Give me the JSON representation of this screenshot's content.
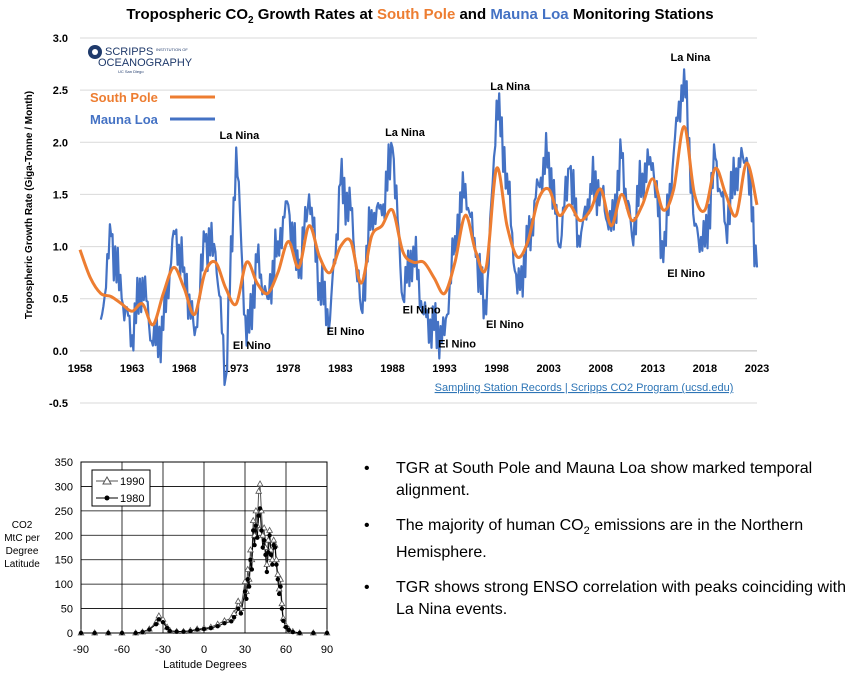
{
  "chart_data": [
    {
      "type": "line",
      "title": "Tropospheric CO2 Growth Rates at South Pole and Mauna Loa Monitoring Stations",
      "title_parts": {
        "prefix": "Tropospheric CO",
        "sub": "2",
        "mid": " Growth Rates at ",
        "south_pole": "South Pole",
        "and": " and ",
        "mauna_loa": "Mauna Loa",
        "suffix": " Monitoring Stations"
      },
      "ylabel": "Tropospheric Growth Rate (Giga-Tonne / Month)",
      "xlabel": "",
      "xlim": [
        1958,
        2023
      ],
      "ylim": [
        -0.5,
        3.0
      ],
      "x_ticks": [
        1958,
        1963,
        1968,
        1973,
        1978,
        1983,
        1988,
        1993,
        1998,
        2003,
        2008,
        2013,
        2018,
        2023
      ],
      "y_ticks": [
        "-0.5",
        "0.0",
        "0.5",
        "1.0",
        "1.5",
        "2.0",
        "2.5",
        "3.0"
      ],
      "legend": "top-left",
      "series": [
        {
          "name": "South Pole",
          "color": "#ED7D31",
          "x": [
            1958,
            1959,
            1960,
            1961,
            1962,
            1963,
            1964,
            1965,
            1966,
            1967,
            1968,
            1969,
            1970,
            1971,
            1972,
            1973,
            1974,
            1975,
            1976,
            1977,
            1978,
            1979,
            1980,
            1981,
            1982,
            1983,
            1984,
            1985,
            1986,
            1987,
            1988,
            1989,
            1990,
            1991,
            1992,
            1993,
            1994,
            1995,
            1996,
            1997,
            1998,
            1999,
            2000,
            2001,
            2002,
            2003,
            2004,
            2005,
            2006,
            2007,
            2008,
            2009,
            2010,
            2011,
            2012,
            2013,
            2014,
            2015,
            2016,
            2017,
            2018,
            2019,
            2020,
            2021,
            2022,
            2023
          ],
          "values": [
            0.97,
            0.7,
            0.55,
            0.52,
            0.45,
            0.38,
            0.45,
            0.25,
            0.55,
            0.8,
            0.6,
            0.35,
            0.75,
            0.85,
            0.6,
            0.45,
            0.85,
            0.65,
            0.55,
            0.75,
            1.05,
            0.8,
            1.2,
            0.9,
            0.75,
            1.0,
            1.05,
            0.65,
            1.1,
            1.2,
            1.35,
            0.95,
            0.85,
            0.85,
            0.7,
            0.55,
            0.85,
            1.3,
            0.95,
            0.8,
            1.75,
            1.2,
            0.9,
            1.05,
            1.45,
            1.55,
            1.3,
            1.4,
            1.25,
            1.35,
            1.55,
            1.2,
            1.5,
            1.25,
            1.4,
            1.65,
            1.35,
            1.55,
            2.15,
            1.5,
            1.35,
            1.75,
            1.5,
            1.3,
            1.8,
            1.4
          ]
        },
        {
          "name": "Mauna Loa",
          "color": "#4472C4",
          "x": [
            1960,
            1961,
            1962,
            1963,
            1964,
            1965,
            1966,
            1967,
            1968,
            1969,
            1970,
            1971,
            1972,
            1973,
            1974,
            1975,
            1976,
            1977,
            1978,
            1979,
            1980,
            1981,
            1982,
            1983,
            1984,
            1985,
            1986,
            1987,
            1988,
            1989,
            1990,
            1991,
            1992,
            1993,
            1994,
            1995,
            1996,
            1997,
            1998,
            1999,
            2000,
            2001,
            2002,
            2003,
            2004,
            2005,
            2006,
            2007,
            2008,
            2009,
            2010,
            2011,
            2012,
            2013,
            2014,
            2015,
            2016,
            2017,
            2018,
            2019,
            2020,
            2021,
            2022,
            2023
          ],
          "values": [
            0.3,
            1.1,
            0.5,
            0.15,
            0.7,
            0.05,
            0.2,
            1.15,
            0.8,
            0.15,
            1.05,
            0.95,
            -0.25,
            1.95,
            0.05,
            0.85,
            0.5,
            1.05,
            1.4,
            0.7,
            1.5,
            0.65,
            0.3,
            1.6,
            1.35,
            0.4,
            1.35,
            1.3,
            1.95,
            0.5,
            1.0,
            0.35,
            0.2,
            0.15,
            1.1,
            1.6,
            0.9,
            0.35,
            2.4,
            1.7,
            0.55,
            1.0,
            1.6,
            1.9,
            1.0,
            1.75,
            1.0,
            1.6,
            1.55,
            1.15,
            1.85,
            1.1,
            1.7,
            1.8,
            0.85,
            1.9,
            2.7,
            1.2,
            1.0,
            1.85,
            1.2,
            1.75,
            1.85,
            0.8
          ]
        }
      ],
      "annotations": [
        {
          "text": "La Nina",
          "x": 1973.3,
          "y": 2.03
        },
        {
          "text": "La Nina",
          "x": 1989.2,
          "y": 2.06
        },
        {
          "text": "La Nina",
          "x": 1999.3,
          "y": 2.5
        },
        {
          "text": "La Nina",
          "x": 2016.6,
          "y": 2.78
        },
        {
          "text": "El Nino",
          "x": 1974.5,
          "y": 0.02
        },
        {
          "text": "El Nino",
          "x": 1983.5,
          "y": 0.15
        },
        {
          "text": "El Nino",
          "x": 1990.8,
          "y": 0.36
        },
        {
          "text": "El Nino",
          "x": 1994.2,
          "y": 0.03
        },
        {
          "text": "El Nino",
          "x": 1998.8,
          "y": 0.22
        },
        {
          "text": "El Nino",
          "x": 2016.2,
          "y": 0.71
        }
      ],
      "logo": {
        "line1": "SCRIPPS",
        "line2": "OCEANOGRAPHY",
        "tagline": "INSTITUTION OF",
        "sub": "UC San Diego"
      },
      "source_link": "Sampling Station Records | Scripps CO2 Program (ucsd.edu)"
    },
    {
      "type": "line",
      "title": "",
      "ylabel": "CO2 MtC per Degree Latitude",
      "ylabel_lines": [
        "CO2",
        "MtC per",
        "Degree",
        "Latitude"
      ],
      "xlabel": "Latitude Degrees",
      "xlim": [
        -90,
        90
      ],
      "ylim": [
        0,
        350
      ],
      "x_ticks": [
        -90,
        -60,
        -30,
        0,
        30,
        60,
        90
      ],
      "y_ticks": [
        0,
        50,
        100,
        150,
        200,
        250,
        300,
        350
      ],
      "grid": true,
      "legend": "top-left",
      "series": [
        {
          "name": "1990",
          "marker": "triangle",
          "x": [
            -90,
            -80,
            -70,
            -60,
            -50,
            -45,
            -40,
            -35,
            -33,
            -30,
            -27,
            -25,
            -20,
            -15,
            -10,
            -5,
            0,
            5,
            10,
            15,
            20,
            22,
            25,
            27,
            30,
            31,
            32,
            33,
            34,
            35,
            36,
            37,
            38,
            39,
            40,
            41,
            42,
            43,
            44,
            45,
            46,
            47,
            48,
            49,
            50,
            51,
            52,
            53,
            54,
            55,
            56,
            57,
            58,
            60,
            62,
            65,
            70,
            80,
            90
          ],
          "values": [
            0,
            0,
            0,
            0,
            0,
            2,
            8,
            22,
            35,
            28,
            12,
            5,
            3,
            3,
            5,
            8,
            10,
            12,
            18,
            25,
            30,
            40,
            65,
            50,
            105,
            85,
            130,
            110,
            170,
            150,
            230,
            200,
            250,
            220,
            290,
            305,
            250,
            200,
            215,
            175,
            140,
            190,
            210,
            170,
            150,
            190,
            180,
            150,
            120,
            90,
            110,
            60,
            30,
            15,
            8,
            3,
            0,
            0,
            0
          ]
        },
        {
          "name": "1980",
          "marker": "circle",
          "x": [
            -90,
            -80,
            -70,
            -60,
            -50,
            -45,
            -40,
            -35,
            -33,
            -30,
            -27,
            -25,
            -20,
            -15,
            -10,
            -5,
            0,
            5,
            10,
            15,
            20,
            22,
            25,
            27,
            30,
            31,
            32,
            33,
            34,
            35,
            36,
            37,
            38,
            39,
            40,
            41,
            42,
            43,
            44,
            45,
            46,
            47,
            48,
            49,
            50,
            51,
            52,
            53,
            54,
            55,
            56,
            57,
            58,
            60,
            62,
            65,
            70,
            80,
            90
          ],
          "values": [
            0,
            0,
            0,
            0,
            0,
            2,
            7,
            18,
            28,
            22,
            10,
            4,
            3,
            3,
            4,
            7,
            8,
            10,
            14,
            20,
            24,
            32,
            50,
            40,
            85,
            70,
            110,
            95,
            150,
            130,
            210,
            180,
            220,
            195,
            240,
            255,
            210,
            175,
            190,
            160,
            125,
            165,
            200,
            160,
            140,
            180,
            175,
            140,
            110,
            80,
            95,
            50,
            25,
            12,
            6,
            2,
            0,
            0,
            0
          ]
        }
      ]
    }
  ],
  "bullets": [
    {
      "text": "TGR at South Pole and Mauna Loa show marked temporal alignment."
    },
    {
      "before": "The majority of human CO",
      "sub": "2",
      "after": " emissions are in the Northern Hemisphere."
    },
    {
      "text": "TGR shows strong ENSO correlation with peaks coinciding with La Nina events."
    }
  ],
  "bullet_symbol": "•"
}
